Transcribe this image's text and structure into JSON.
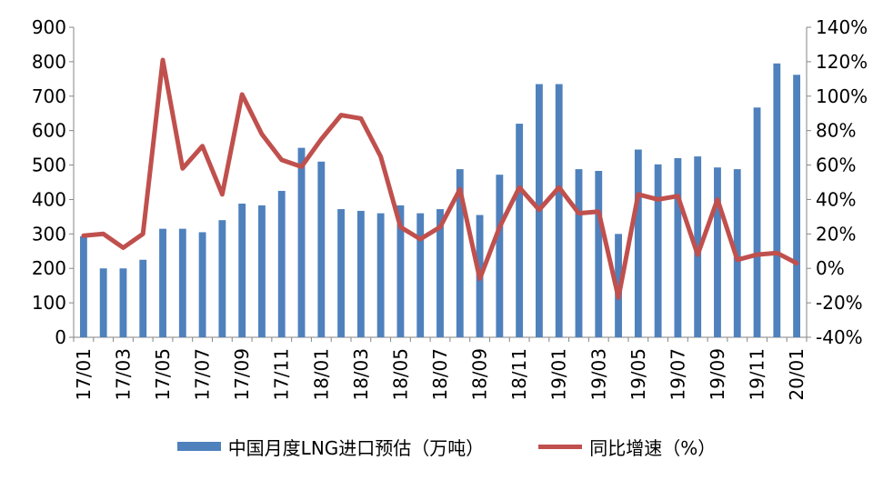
{
  "chart_data": {
    "type": "bar",
    "categories": [
      "17/01",
      "17/02",
      "17/03",
      "17/04",
      "17/05",
      "17/06",
      "17/07",
      "17/08",
      "17/09",
      "17/10",
      "17/11",
      "17/12",
      "18/01",
      "18/02",
      "18/03",
      "18/04",
      "18/05",
      "18/06",
      "18/07",
      "18/08",
      "18/09",
      "18/10",
      "18/11",
      "18/12",
      "19/01",
      "19/02",
      "19/03",
      "19/04",
      "19/05",
      "19/06",
      "19/07",
      "19/08",
      "19/09",
      "19/10",
      "19/11",
      "19/12",
      "20/01"
    ],
    "x_tick_labels": [
      "17/01",
      "17/03",
      "17/05",
      "17/07",
      "17/09",
      "17/11",
      "18/01",
      "18/03",
      "18/05",
      "18/07",
      "18/09",
      "18/11",
      "19/01",
      "19/03",
      "19/05",
      "19/07",
      "19/09",
      "19/11",
      "20/01"
    ],
    "series": [
      {
        "name": "中国月度LNG进口预估（万吨）",
        "type": "bar",
        "axis": "left",
        "color": "#4F81BD",
        "values": [
          293,
          200,
          200,
          225,
          315,
          315,
          305,
          340,
          388,
          383,
          425,
          550,
          510,
          372,
          367,
          360,
          383,
          360,
          372,
          488,
          355,
          472,
          620,
          735,
          735,
          488,
          483,
          300,
          545,
          502,
          520,
          525,
          493,
          488,
          667,
          795,
          762
        ]
      },
      {
        "name": "同比增速（%）",
        "type": "line",
        "axis": "right",
        "color": "#C0504D",
        "values": [
          19,
          20,
          12,
          20,
          121,
          58,
          71,
          43,
          101,
          78,
          63,
          59,
          75,
          89,
          87,
          65,
          24,
          17,
          24,
          46,
          -6,
          24,
          47,
          34,
          47,
          32,
          33,
          -17,
          43,
          40,
          42,
          8,
          40,
          5,
          8,
          9,
          3
        ]
      }
    ],
    "y_left": {
      "ylim": [
        0,
        900
      ],
      "ticks": [
        "0",
        "100",
        "200",
        "300",
        "400",
        "500",
        "600",
        "700",
        "800",
        "900"
      ]
    },
    "y_right": {
      "ylim": [
        -40,
        140
      ],
      "ticks": [
        "-40%",
        "-20%",
        "0%",
        "20%",
        "40%",
        "60%",
        "80%",
        "100%",
        "120%",
        "140%"
      ]
    },
    "grid": false,
    "legend": "bottom"
  },
  "legend": {
    "bar_label": "中国月度LNG进口预估（万吨）",
    "line_label": "同比增速（%）"
  }
}
